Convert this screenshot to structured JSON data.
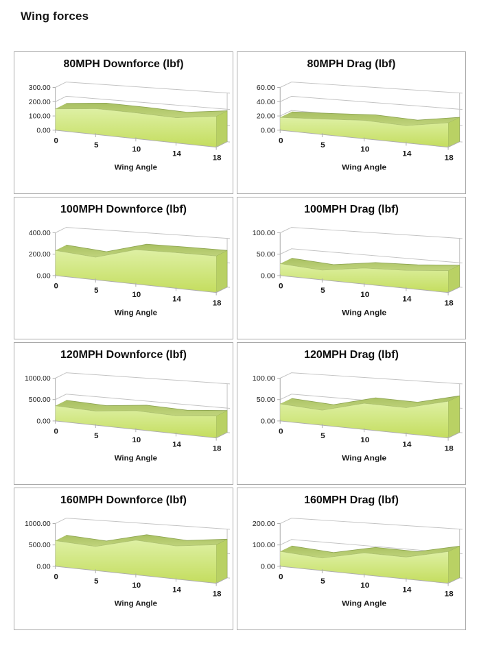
{
  "page": {
    "title": "Wing forces"
  },
  "style": {
    "grid_line": "#c3c3c3",
    "axis_line": "#aeaeae",
    "panel_border": "#a9a9a9",
    "area_front_top": "#def0a4",
    "area_front_bottom": "#c4dd5e",
    "area_band_dark": "#a9c062",
    "area_band_light": "#c0d47c",
    "area_band_edge": "#8fa653",
    "area_side": "#b9d164",
    "text_color": "#1a1a1a"
  },
  "chart_data": [
    {
      "type": "area",
      "title": "80MPH Downforce (lbf)",
      "xlabel": "Wing Angle",
      "categories": [
        "0",
        "5",
        "10",
        "14",
        "18"
      ],
      "values": [
        150,
        175,
        170,
        160,
        190
      ],
      "ylim": [
        0,
        300
      ],
      "ytick_labels": [
        "0.00",
        "100.00",
        "200.00",
        "300.00"
      ]
    },
    {
      "type": "area",
      "title": "80MPH Drag (lbf)",
      "xlabel": "Wing Angle",
      "categories": [
        "0",
        "5",
        "10",
        "14",
        "18"
      ],
      "values": [
        18,
        21,
        24,
        22,
        30
      ],
      "ylim": [
        0,
        60
      ],
      "ytick_labels": [
        "0.00",
        "20.00",
        "40.00",
        "60.00"
      ]
    },
    {
      "type": "area",
      "title": "100MPH Downforce (lbf)",
      "xlabel": "Wing Angle",
      "categories": [
        "0",
        "5",
        "10",
        "14",
        "18"
      ],
      "values": [
        235,
        205,
        300,
        302,
        300
      ],
      "ylim": [
        0,
        400
      ],
      "ytick_labels": [
        "0.00",
        "200.00",
        "400.00"
      ]
    },
    {
      "type": "area",
      "title": "100MPH Drag (lbf)",
      "xlabel": "Wing Angle",
      "categories": [
        "0",
        "5",
        "10",
        "14",
        "18"
      ],
      "values": [
        28,
        22,
        35,
        38,
        45
      ],
      "ylim": [
        0,
        100
      ],
      "ytick_labels": [
        "0.00",
        "50.00",
        "100.00"
      ]
    },
    {
      "type": "area",
      "title": "120MPH Downforce (lbf)",
      "xlabel": "Wing Angle",
      "categories": [
        "0",
        "5",
        "10",
        "14",
        "18"
      ],
      "values": [
        355,
        320,
        410,
        380,
        450
      ],
      "ylim": [
        0,
        1000
      ],
      "ytick_labels": [
        "0.00",
        "500.00",
        "1000.00"
      ]
    },
    {
      "type": "area",
      "title": "120MPH Drag (lbf)",
      "xlabel": "Wing Angle",
      "categories": [
        "0",
        "5",
        "10",
        "14",
        "18"
      ],
      "values": [
        40,
        34,
        57,
        55,
        75
      ],
      "ylim": [
        0,
        100
      ],
      "ytick_labels": [
        "0.00",
        "50.00",
        "100.00"
      ]
    },
    {
      "type": "area",
      "title": "160MPH Downforce (lbf)",
      "xlabel": "Wing Angle",
      "categories": [
        "0",
        "5",
        "10",
        "14",
        "18"
      ],
      "values": [
        600,
        545,
        755,
        700,
        790
      ],
      "ylim": [
        0,
        1000
      ],
      "ytick_labels": [
        "0.00",
        "500.00",
        "1000.00"
      ]
    },
    {
      "type": "area",
      "title": "160MPH Drag (lbf)",
      "xlabel": "Wing Angle",
      "categories": [
        "0",
        "5",
        "10",
        "14",
        "18"
      ],
      "values": [
        70,
        57,
        96,
        93,
        130
      ],
      "ylim": [
        0,
        200
      ],
      "ytick_labels": [
        "0.00",
        "100.00",
        "200.00"
      ]
    }
  ]
}
